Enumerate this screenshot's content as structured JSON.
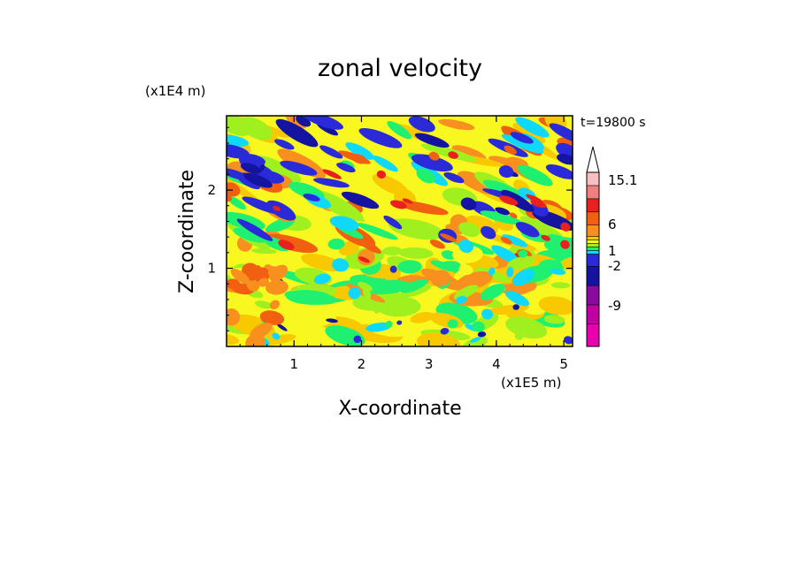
{
  "chart_data": {
    "type": "heatmap",
    "title": "zonal velocity",
    "xlabel": "X-coordinate",
    "ylabel": "Z-coordinate",
    "x_unit": "(x1E5 m)",
    "y_unit": "(x1E4 m)",
    "time_label": "t=19800 s",
    "xlim": [
      0,
      5.13
    ],
    "ylim": [
      0,
      2.95
    ],
    "x_ticks": [
      "1",
      "2",
      "3",
      "4",
      "5"
    ],
    "y_ticks": [
      "1",
      "2"
    ],
    "colorbar": {
      "labels": [
        {
          "text": "15.1",
          "value": 15.1
        },
        {
          "text": "6",
          "value": 6
        },
        {
          "text": "1",
          "value": 1
        },
        {
          "text": "-2",
          "value": -2
        },
        {
          "text": "-9",
          "value": -9
        }
      ],
      "bins": [
        {
          "color": "#e800b0"
        },
        {
          "color": "#c000a0"
        },
        {
          "color": "#8a0a9e"
        },
        {
          "color": "#1414a0"
        },
        {
          "color": "#2a2ad8"
        },
        {
          "color": "#10d8f8"
        },
        {
          "color": "#20f070"
        },
        {
          "color": "#a0f020"
        },
        {
          "color": "#f8f820"
        },
        {
          "color": "#f8c800"
        },
        {
          "color": "#f89020"
        },
        {
          "color": "#f06010"
        },
        {
          "color": "#e82020"
        },
        {
          "color": "#f08080"
        },
        {
          "color": "#f8c0c0"
        }
      ],
      "extend_top": true
    }
  }
}
